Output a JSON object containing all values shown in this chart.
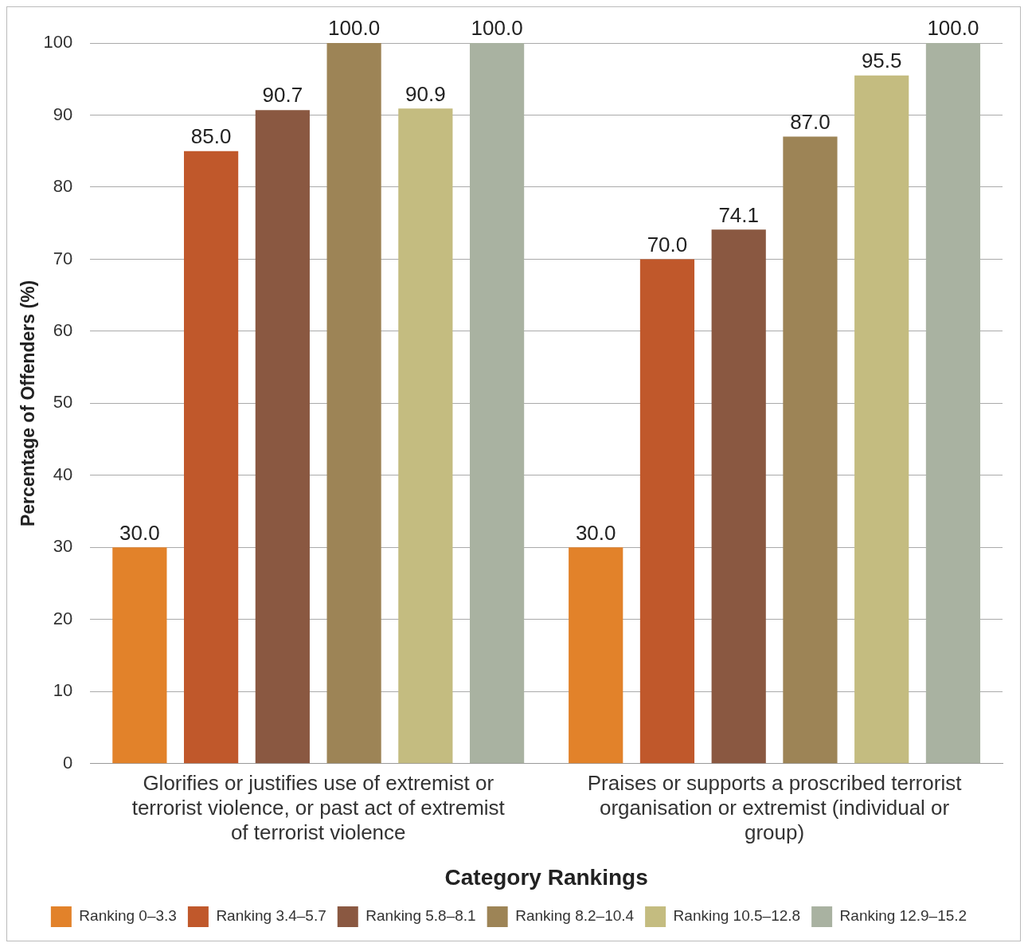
{
  "chart_data": {
    "type": "bar",
    "xlabel": "Category Rankings",
    "ylabel": "Percentage of Offenders (%)",
    "categories": [
      "Glorifies or justifies use of extremist or terrorist violence, or past act of extremist of terrorist violence",
      "Praises or supports a proscribed terrorist organisation or extremist (individual or group)"
    ],
    "series": [
      {
        "name": "Ranking 0–3.3",
        "color": "#e2822a",
        "values": [
          30.0,
          30.0
        ],
        "value_labels": [
          "30.0",
          "30.0"
        ]
      },
      {
        "name": "Ranking 3.4–5.7",
        "color": "#c0582b",
        "values": [
          85.0,
          70.0
        ],
        "value_labels": [
          "85.0",
          "70.0"
        ]
      },
      {
        "name": "Ranking 5.8–8.1",
        "color": "#8a5841",
        "values": [
          90.7,
          74.1
        ],
        "value_labels": [
          "90.7",
          "74.1"
        ]
      },
      {
        "name": "Ranking 8.2–10.4",
        "color": "#9d8456",
        "values": [
          100.0,
          87.0
        ],
        "value_labels": [
          "100.0",
          "87.0"
        ]
      },
      {
        "name": "Ranking 10.5–12.8",
        "color": "#c4bc80",
        "values": [
          90.9,
          95.5
        ],
        "value_labels": [
          "90.9",
          "95.5"
        ]
      },
      {
        "name": "Ranking 12.9–15.2",
        "color": "#a9b2a1",
        "values": [
          100.0,
          100.0
        ],
        "value_labels": [
          "100.0",
          "100.0"
        ]
      }
    ],
    "ylim": [
      0,
      100
    ],
    "yticks": [
      0,
      10,
      20,
      30,
      40,
      50,
      60,
      70,
      80,
      90,
      100
    ],
    "grid": "y",
    "legend": "bottom"
  }
}
